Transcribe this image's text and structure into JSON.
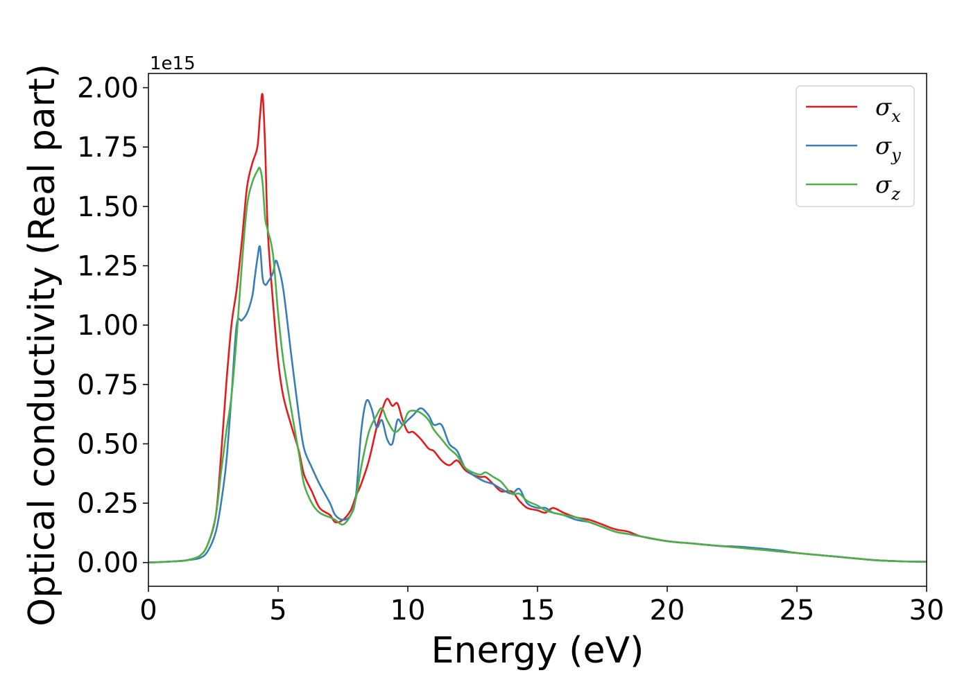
{
  "chart_data": {
    "type": "line",
    "xlabel": "Energy (eV)",
    "ylabel": "Optical conductivity (Real part)",
    "y_offset_label": "1e15",
    "xlim": [
      0,
      30
    ],
    "ylim": [
      -0.1,
      2.06
    ],
    "x_ticks": [
      0,
      5,
      10,
      15,
      20,
      25,
      30
    ],
    "y_ticks": [
      0.0,
      0.25,
      0.5,
      0.75,
      1.0,
      1.25,
      1.5,
      1.75,
      2.0
    ],
    "x_tick_labels": [
      "0",
      "5",
      "10",
      "15",
      "20",
      "25",
      "30"
    ],
    "y_tick_labels": [
      "0.00",
      "0.25",
      "0.50",
      "0.75",
      "1.00",
      "1.25",
      "1.50",
      "1.75",
      "2.00"
    ],
    "grid": false,
    "legend_position": "top-right",
    "series": [
      {
        "name": "σx",
        "color": "#e41a1c",
        "x": [
          0,
          1,
          1.5,
          2,
          2.3,
          2.6,
          2.8,
          3.0,
          3.2,
          3.4,
          3.6,
          3.8,
          4.0,
          4.2,
          4.3,
          4.4,
          4.5,
          4.6,
          4.8,
          5.0,
          5.2,
          5.5,
          5.8,
          6.0,
          6.3,
          6.6,
          7.0,
          7.2,
          7.5,
          7.8,
          8.0,
          8.2,
          8.5,
          8.8,
          9.0,
          9.2,
          9.4,
          9.6,
          9.8,
          10.0,
          10.2,
          10.5,
          10.8,
          11.0,
          11.3,
          11.6,
          11.9,
          12.2,
          12.5,
          12.8,
          13.0,
          13.3,
          13.6,
          14.0,
          14.3,
          14.6,
          15.0,
          15.3,
          15.6,
          16.0,
          16.5,
          17.0,
          17.5,
          18.0,
          18.5,
          19.0,
          20.0,
          21.0,
          22.0,
          23.0,
          24.0,
          25.0,
          26.0,
          27.0,
          28.0,
          29.0,
          30.0
        ],
        "y": [
          0.0,
          0.005,
          0.01,
          0.03,
          0.08,
          0.2,
          0.45,
          0.75,
          1.0,
          1.15,
          1.35,
          1.58,
          1.68,
          1.75,
          1.88,
          1.97,
          1.75,
          1.4,
          1.1,
          0.85,
          0.7,
          0.58,
          0.47,
          0.37,
          0.3,
          0.23,
          0.2,
          0.17,
          0.18,
          0.22,
          0.28,
          0.33,
          0.43,
          0.57,
          0.64,
          0.69,
          0.66,
          0.67,
          0.6,
          0.55,
          0.55,
          0.52,
          0.48,
          0.47,
          0.43,
          0.41,
          0.43,
          0.39,
          0.37,
          0.36,
          0.36,
          0.33,
          0.3,
          0.3,
          0.26,
          0.23,
          0.22,
          0.21,
          0.23,
          0.21,
          0.19,
          0.18,
          0.16,
          0.14,
          0.13,
          0.11,
          0.09,
          0.08,
          0.07,
          0.065,
          0.05,
          0.04,
          0.03,
          0.02,
          0.01,
          0.005,
          0.003
        ]
      },
      {
        "name": "σy",
        "color": "#377eb8",
        "x": [
          0,
          1,
          1.5,
          2,
          2.3,
          2.6,
          2.8,
          3.0,
          3.2,
          3.4,
          3.6,
          3.8,
          4.0,
          4.1,
          4.2,
          4.3,
          4.4,
          4.5,
          4.6,
          4.8,
          4.9,
          5.0,
          5.2,
          5.5,
          5.8,
          6.0,
          6.3,
          6.6,
          7.0,
          7.2,
          7.5,
          7.8,
          8.0,
          8.2,
          8.4,
          8.6,
          8.8,
          9.0,
          9.2,
          9.4,
          9.6,
          9.8,
          10.0,
          10.2,
          10.5,
          10.8,
          11.0,
          11.3,
          11.6,
          11.9,
          12.2,
          12.5,
          12.8,
          13.0,
          13.3,
          13.6,
          14.0,
          14.3,
          14.6,
          15.0,
          15.3,
          15.6,
          16.0,
          16.5,
          17.0,
          17.5,
          18.0,
          18.5,
          19.0,
          20.0,
          21.0,
          22.0,
          23.0,
          24.0,
          24.4,
          25.0,
          26.0,
          27.0,
          28.0,
          29.0,
          30.0
        ],
        "y": [
          0.0,
          0.005,
          0.01,
          0.02,
          0.05,
          0.13,
          0.25,
          0.42,
          0.7,
          1.0,
          1.02,
          1.05,
          1.12,
          1.2,
          1.28,
          1.33,
          1.2,
          1.17,
          1.18,
          1.22,
          1.27,
          1.25,
          1.15,
          0.88,
          0.62,
          0.48,
          0.4,
          0.33,
          0.25,
          0.2,
          0.18,
          0.2,
          0.28,
          0.55,
          0.68,
          0.65,
          0.57,
          0.6,
          0.52,
          0.5,
          0.6,
          0.58,
          0.6,
          0.62,
          0.65,
          0.62,
          0.58,
          0.58,
          0.5,
          0.47,
          0.4,
          0.37,
          0.35,
          0.34,
          0.33,
          0.31,
          0.29,
          0.31,
          0.25,
          0.23,
          0.23,
          0.21,
          0.2,
          0.18,
          0.17,
          0.15,
          0.13,
          0.12,
          0.11,
          0.09,
          0.08,
          0.07,
          0.065,
          0.055,
          0.05,
          0.04,
          0.03,
          0.02,
          0.01,
          0.005,
          0.003
        ]
      },
      {
        "name": "σz",
        "color": "#4daf4a",
        "x": [
          0,
          1,
          1.5,
          2,
          2.3,
          2.6,
          2.8,
          3.0,
          3.2,
          3.4,
          3.6,
          3.8,
          4.0,
          4.2,
          4.3,
          4.4,
          4.5,
          4.6,
          4.8,
          5.0,
          5.2,
          5.5,
          5.8,
          6.0,
          6.3,
          6.6,
          7.0,
          7.2,
          7.5,
          7.8,
          8.0,
          8.2,
          8.5,
          8.8,
          9.0,
          9.2,
          9.5,
          9.8,
          10.0,
          10.2,
          10.5,
          10.8,
          11.0,
          11.3,
          11.6,
          11.9,
          12.2,
          12.5,
          12.8,
          13.0,
          13.3,
          13.6,
          14.0,
          14.3,
          14.6,
          15.0,
          15.3,
          15.6,
          16.0,
          16.5,
          17.0,
          17.5,
          18.0,
          18.5,
          19.0,
          20.0,
          21.0,
          22.0,
          23.0,
          24.0,
          25.0,
          26.0,
          27.0,
          28.0,
          29.0,
          30.0
        ],
        "y": [
          0.0,
          0.005,
          0.01,
          0.03,
          0.08,
          0.2,
          0.38,
          0.55,
          0.7,
          0.95,
          1.25,
          1.5,
          1.6,
          1.65,
          1.66,
          1.6,
          1.45,
          1.4,
          1.3,
          1.05,
          0.85,
          0.65,
          0.46,
          0.33,
          0.25,
          0.21,
          0.19,
          0.18,
          0.16,
          0.2,
          0.27,
          0.4,
          0.55,
          0.62,
          0.65,
          0.6,
          0.55,
          0.58,
          0.63,
          0.64,
          0.63,
          0.6,
          0.56,
          0.52,
          0.48,
          0.45,
          0.4,
          0.38,
          0.37,
          0.38,
          0.36,
          0.34,
          0.29,
          0.29,
          0.26,
          0.24,
          0.22,
          0.21,
          0.2,
          0.19,
          0.17,
          0.15,
          0.13,
          0.12,
          0.11,
          0.09,
          0.08,
          0.07,
          0.06,
          0.05,
          0.04,
          0.03,
          0.02,
          0.01,
          0.005,
          0.003
        ]
      }
    ]
  }
}
